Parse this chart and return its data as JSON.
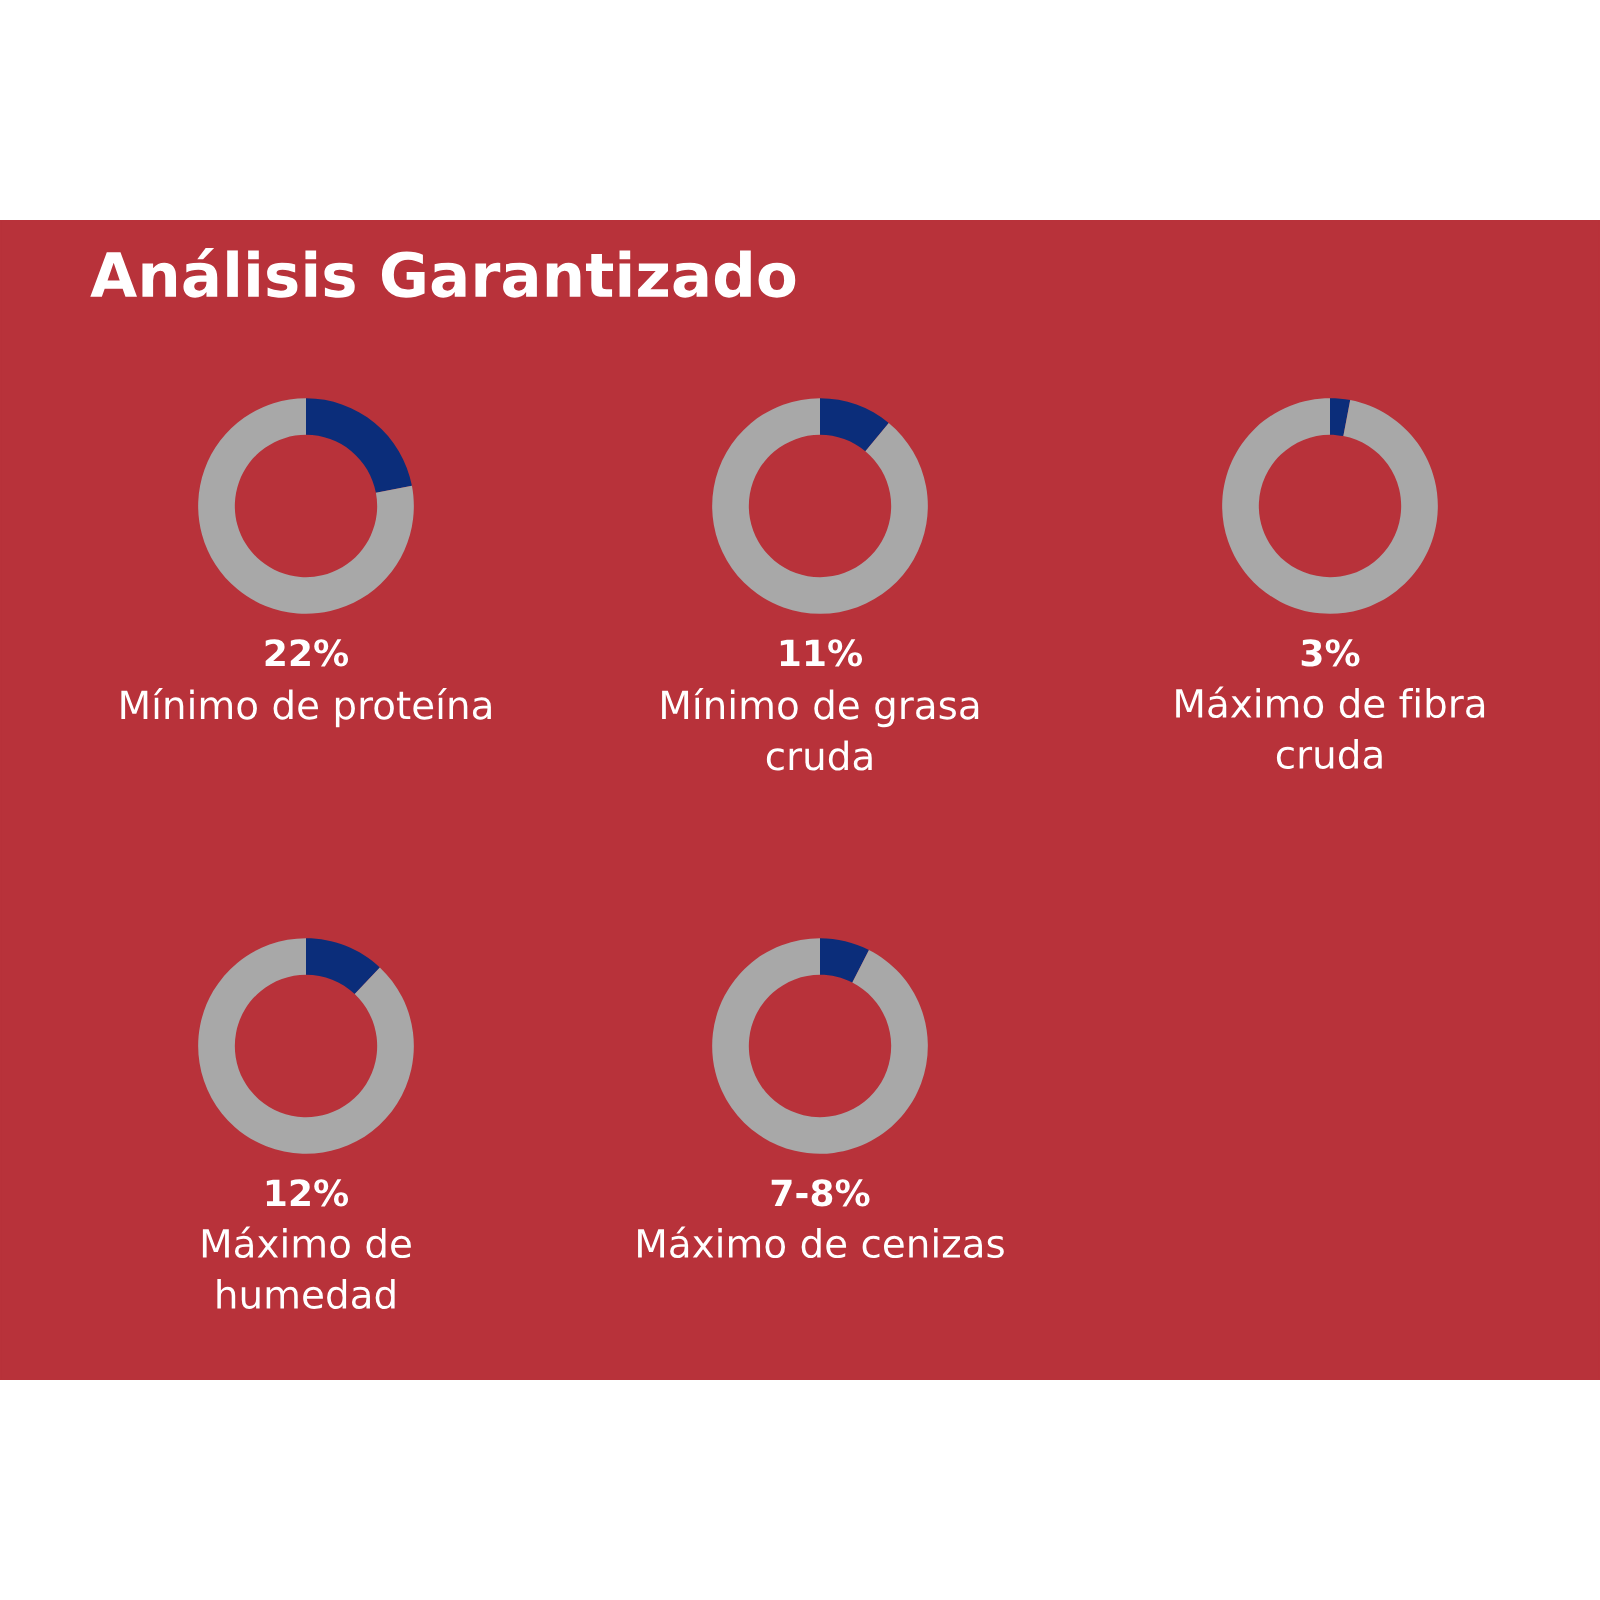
{
  "chart_data": [
    {
      "type": "other",
      "title": "Análisis Garantizado"
    },
    {
      "type": "donut",
      "title": "22%",
      "subtitle": "Mínimo de proteína",
      "categories": [
        null,
        null
      ],
      "values": [
        22,
        78
      ],
      "colors": [
        "#0b2d7a",
        "#a8a8a8"
      ]
    },
    {
      "type": "donut",
      "title": "11%",
      "subtitle": "Mínimo de grasa\ncruda",
      "categories": [
        null,
        null
      ],
      "values": [
        11,
        89
      ],
      "colors": [
        "#0b2d7a",
        "#a8a8a8"
      ]
    },
    {
      "type": "donut",
      "title": "3%",
      "subtitle": "Máximo de fibra\ncruda",
      "categories": [
        null,
        null
      ],
      "values": [
        3,
        97
      ],
      "colors": [
        "#0b2d7a",
        "#a8a8a8"
      ]
    },
    {
      "type": "donut",
      "title": "12%",
      "subtitle": "Máximo de\nhumedad",
      "categories": [
        null,
        null
      ],
      "values": [
        12,
        88
      ],
      "colors": [
        "#0b2d7a",
        "#a8a8a8"
      ]
    },
    {
      "type": "donut",
      "title": "7-8%",
      "subtitle": "Máximo de cenizas",
      "categories": [
        null,
        null
      ],
      "values": [
        7.5,
        92.5
      ],
      "colors": [
        "#0b2d7a",
        "#a8a8a8"
      ]
    }
  ]
}
